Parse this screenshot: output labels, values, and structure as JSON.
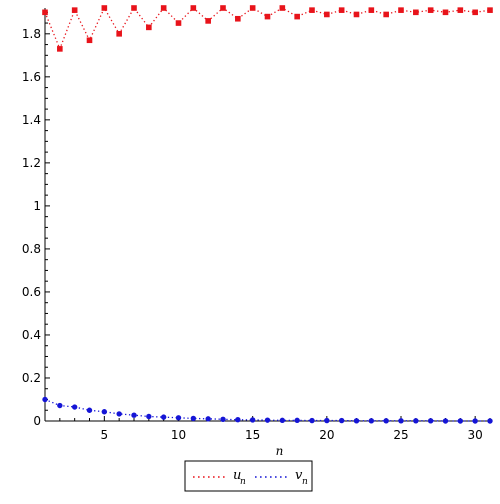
{
  "chart_data": {
    "type": "scatter",
    "title": "",
    "xlabel": "n",
    "ylabel": "",
    "xlim": [
      1,
      31
    ],
    "ylim": [
      0,
      1.92
    ],
    "x_ticks": [
      5,
      10,
      15,
      20,
      25,
      30
    ],
    "y_ticks": [
      0,
      0.2,
      0.4,
      0.6,
      0.8,
      1,
      1.2,
      1.4,
      1.6,
      1.8
    ],
    "grid": false,
    "legend_position": "bottom-center",
    "series": [
      {
        "name": "u",
        "subscript": "n",
        "color": "#e8131a",
        "marker": "square",
        "line_style": "dotted",
        "x": [
          1,
          2,
          3,
          4,
          5,
          6,
          7,
          8,
          9,
          10,
          11,
          12,
          13,
          14,
          15,
          16,
          17,
          18,
          19,
          20,
          21,
          22,
          23,
          24,
          25,
          26,
          27,
          28,
          29,
          30,
          31
        ],
        "values": [
          1.9,
          1.73,
          1.91,
          1.77,
          1.92,
          1.8,
          1.92,
          1.83,
          1.92,
          1.85,
          1.92,
          1.86,
          1.92,
          1.87,
          1.92,
          1.88,
          1.92,
          1.88,
          1.91,
          1.89,
          1.91,
          1.89,
          1.91,
          1.89,
          1.91,
          1.9,
          1.91,
          1.9,
          1.91,
          1.9,
          1.91
        ]
      },
      {
        "name": "v",
        "subscript": "n",
        "color": "#1515d6",
        "marker": "circle",
        "line_style": "dotted",
        "x": [
          1,
          2,
          3,
          4,
          5,
          6,
          7,
          8,
          9,
          10,
          11,
          12,
          13,
          14,
          15,
          16,
          17,
          18,
          19,
          20,
          21,
          22,
          23,
          24,
          25,
          26,
          27,
          28,
          29,
          30,
          31
        ],
        "values": [
          0.1,
          0.072,
          0.065,
          0.05,
          0.043,
          0.033,
          0.027,
          0.021,
          0.018,
          0.015,
          0.012,
          0.01,
          0.008,
          0.006,
          0.005,
          0.004,
          0.003,
          0.003,
          0.002,
          0.002,
          0.002,
          0.001,
          0.001,
          0.001,
          0.001,
          0.001,
          0.001,
          0.0,
          0.0,
          0.0,
          0.0
        ]
      }
    ]
  }
}
